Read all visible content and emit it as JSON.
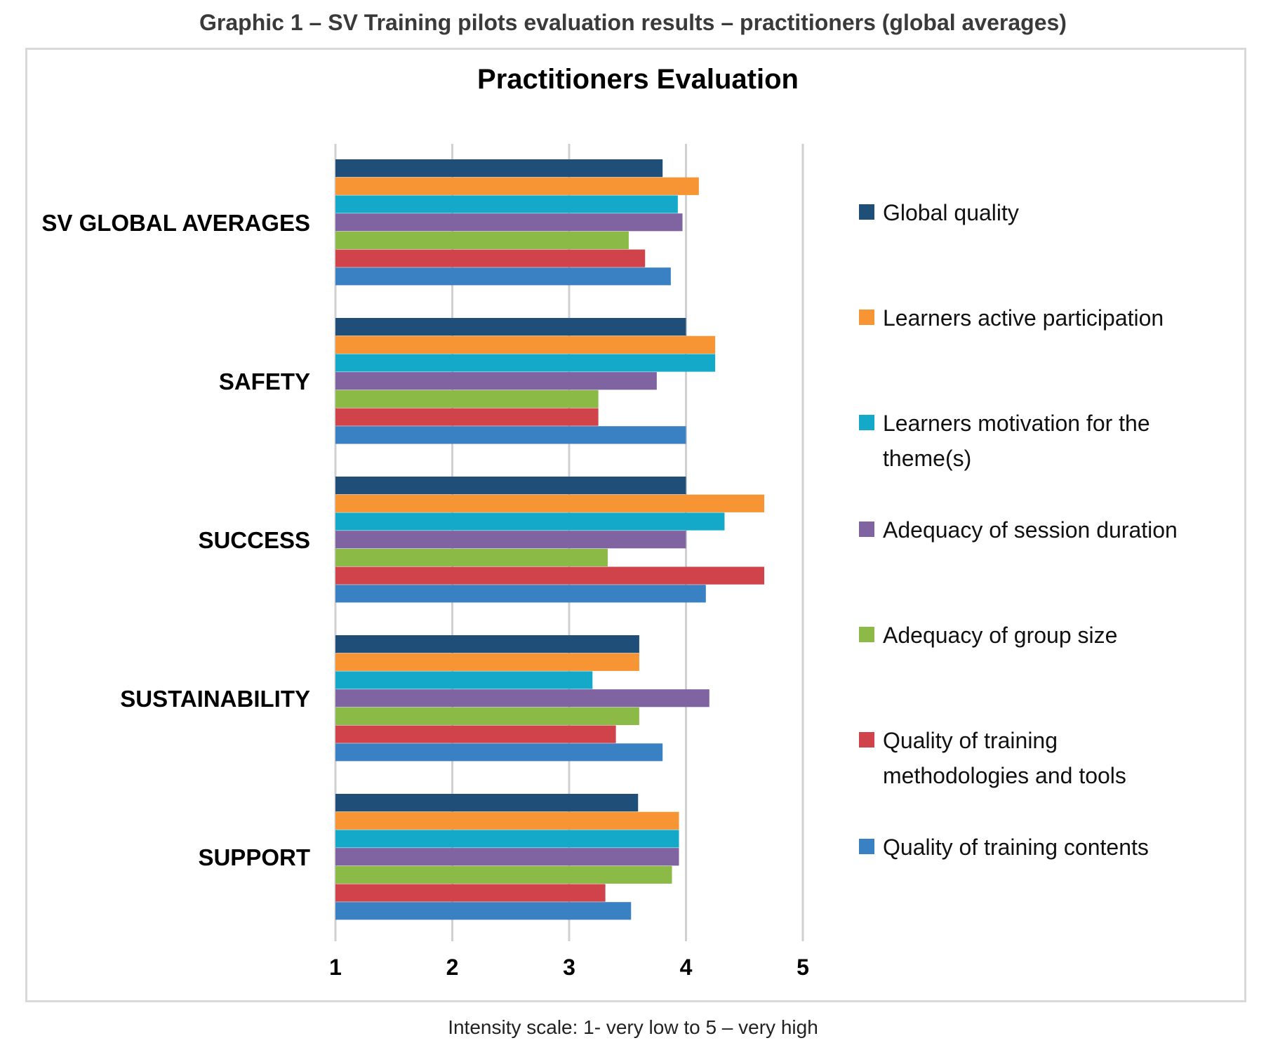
{
  "caption": "Graphic 1 – SV Training pilots evaluation results – practitioners (global averages)",
  "footnote": "Intensity scale: 1- very low to 5 – very high",
  "chart_data": {
    "type": "bar",
    "orientation": "horizontal",
    "title": "Practitioners Evaluation",
    "xlabel": "",
    "ylabel": "",
    "xlim": [
      1,
      5
    ],
    "xticks": [
      "1",
      "2",
      "3",
      "4",
      "5"
    ],
    "grid": "vertical",
    "legend_position": "right",
    "categories": [
      "SV GLOBAL AVERAGES",
      "SAFETY",
      "SUCCESS",
      "SUSTAINABILITY",
      "SUPPORT"
    ],
    "series": [
      {
        "name": "Global quality",
        "color": "#1f4e79",
        "values": [
          3.8,
          4.0,
          4.0,
          3.6,
          3.59
        ]
      },
      {
        "name": "Learners active participation",
        "color": "#f79433",
        "values": [
          4.11,
          4.25,
          4.67,
          3.6,
          3.94
        ]
      },
      {
        "name": "Learners motivation for the theme(s)",
        "color": "#14a9c9",
        "values": [
          3.93,
          4.25,
          4.33,
          3.2,
          3.94
        ]
      },
      {
        "name": "Adequacy of  session duration",
        "color": "#8064a2",
        "values": [
          3.97,
          3.75,
          4.0,
          4.2,
          3.94
        ]
      },
      {
        "name": "Adequacy of  group size",
        "color": "#8bbb46",
        "values": [
          3.51,
          3.25,
          3.33,
          3.6,
          3.88
        ]
      },
      {
        "name": "Quality of training methodologies and tools",
        "color": "#d0434b",
        "values": [
          3.65,
          3.25,
          4.67,
          3.4,
          3.31
        ]
      },
      {
        "name": "Quality of training contents",
        "color": "#3a81c3",
        "values": [
          3.87,
          4.0,
          4.17,
          3.8,
          3.53
        ]
      }
    ]
  }
}
